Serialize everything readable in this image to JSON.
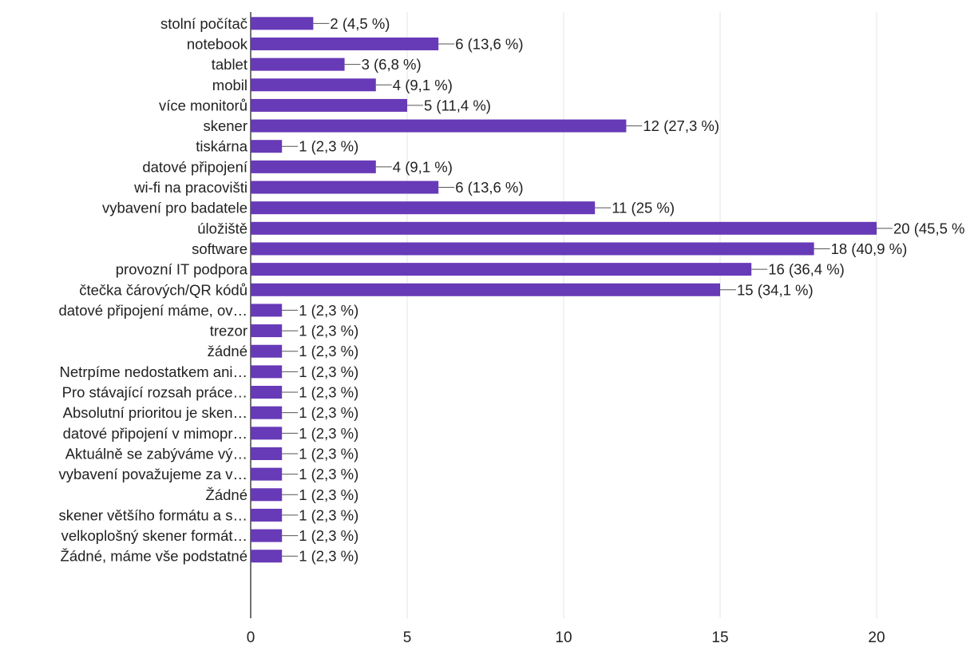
{
  "chart_data": {
    "type": "bar",
    "orientation": "horizontal",
    "categories": [
      "stolní počítač",
      "notebook",
      "tablet",
      "mobil",
      "více monitorů",
      "skener",
      "tiskárna",
      "datové připojení",
      "wi-fi na pracovišti",
      "vybavení pro badatele",
      "úložiště",
      "software",
      "provozní IT podpora",
      "čtečka čárových/QR kódů",
      "datové připojení máme, ov…",
      "trezor",
      "žádné",
      "Netrpíme nedostatkem ani…",
      "Pro stávající rozsah práce…",
      "Absolutní prioritou je sken…",
      "datové připojení v mimopr…",
      "Aktuálně se zabýváme vý…",
      "vybavení považujeme za v…",
      "Žádné",
      "skener většího formátu a s…",
      "velkoplošný skener formát…",
      "Žádné, máme vše podstatné"
    ],
    "values": [
      2,
      6,
      3,
      4,
      5,
      12,
      1,
      4,
      6,
      11,
      20,
      18,
      16,
      15,
      1,
      1,
      1,
      1,
      1,
      1,
      1,
      1,
      1,
      1,
      1,
      1,
      1
    ],
    "data_labels": [
      "2 (4,5 %)",
      "6 (13,6 %)",
      "3 (6,8 %)",
      "4 (9,1 %)",
      "5 (11,4 %)",
      "12 (27,3 %)",
      "1 (2,3 %)",
      "4 (9,1 %)",
      "6 (13,6 %)",
      "11 (25 %)",
      "20 (45,5 %",
      "18 (40,9 %)",
      "16 (36,4 %)",
      "15 (34,1 %)",
      "1 (2,3 %)",
      "1 (2,3 %)",
      "1 (2,3 %)",
      "1 (2,3 %)",
      "1 (2,3 %)",
      "1 (2,3 %)",
      "1 (2,3 %)",
      "1 (2,3 %)",
      "1 (2,3 %)",
      "1 (2,3 %)",
      "1 (2,3 %)",
      "1 (2,3 %)",
      "1 (2,3 %)"
    ],
    "x_ticks": [
      0,
      5,
      10,
      15,
      20
    ],
    "xlim": [
      0,
      20
    ],
    "grid": true,
    "bar_color": "#673ab7",
    "grid_color": "#e6e6e6",
    "axis_color": "#444444"
  }
}
